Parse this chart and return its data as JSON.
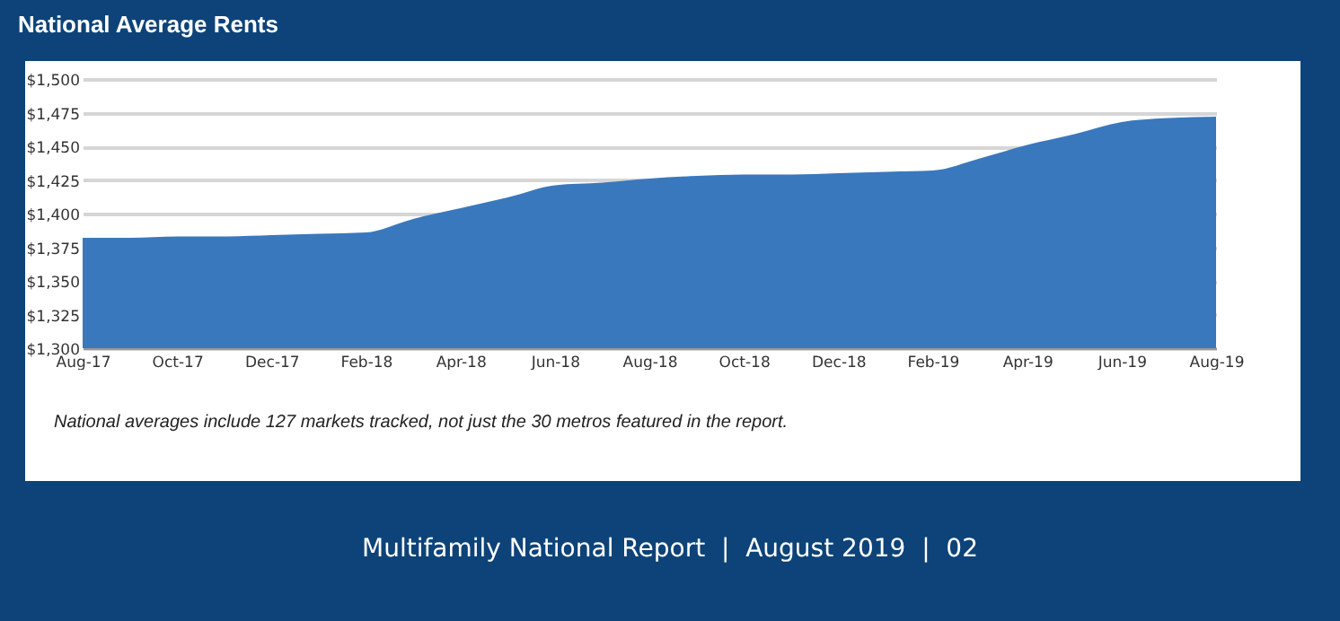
{
  "chart_data": {
    "type": "area",
    "title": "National Average Rents",
    "categories": [
      "Aug-17",
      null,
      "Oct-17",
      null,
      "Dec-17",
      null,
      "Feb-18",
      null,
      "Apr-18",
      null,
      "Jun-18",
      null,
      "Aug-18",
      null,
      "Oct-18",
      null,
      "Dec-18",
      null,
      "Feb-19",
      null,
      "Apr-19",
      null,
      "Jun-19",
      null,
      "Aug-19"
    ],
    "series": [
      {
        "color": "#3a78bd",
        "values": [
          1382,
          1382,
          1383,
          1383,
          1384,
          1385,
          1386,
          1396,
          1404,
          1412,
          1421,
          1423,
          1426,
          1428,
          1429,
          1429,
          1430,
          1431,
          1432,
          1441,
          1451,
          1459,
          1468,
          1471,
          1472
        ]
      }
    ],
    "ylim": [
      1300,
      1500
    ],
    "yticks": [
      {
        "value": 1300,
        "label": "$1,300"
      },
      {
        "value": 1325,
        "label": "$1,325"
      },
      {
        "value": 1350,
        "label": "$1,350"
      },
      {
        "value": 1375,
        "label": "$1,375"
      },
      {
        "value": 1400,
        "label": "$1,400"
      },
      {
        "value": 1425,
        "label": "$1,425"
      },
      {
        "value": 1450,
        "label": "$1,450"
      },
      {
        "value": 1475,
        "label": "$1,475"
      },
      {
        "value": 1500,
        "label": "$1,500"
      }
    ],
    "grid": "y",
    "annotations": [
      "National averages include 127 markets tracked, not just the 30 metros featured in the report.",
      "Multifamily National Report  |  August 2019  |  02"
    ]
  }
}
